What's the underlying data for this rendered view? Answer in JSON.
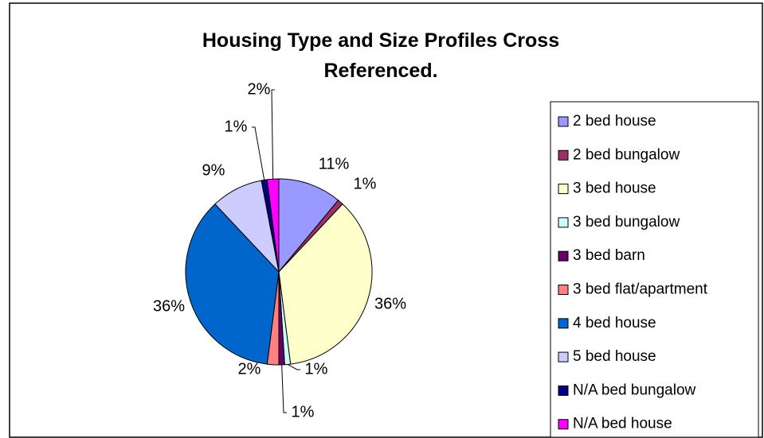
{
  "chart_data": {
    "type": "pie",
    "title": "Housing Type and Size Profiles Cross Referenced.",
    "categories": [
      "2 bed house",
      "2 bed bungalow",
      "3 bed house",
      "3 bed bungalow",
      "3 bed barn",
      "3 bed flat/apartment",
      "4 bed house",
      "5 bed house",
      "N/A bed bungalow",
      "N/A bed house"
    ],
    "values": [
      11,
      1,
      36,
      1,
      1,
      2,
      36,
      9,
      1,
      2
    ],
    "value_labels": [
      "11%",
      "1%",
      "36%",
      "1%",
      "1%",
      "2%",
      "36%",
      "9%",
      "1%",
      "2%"
    ],
    "colors": [
      "#9999ff",
      "#993366",
      "#ffffcc",
      "#ccffff",
      "#660066",
      "#ff8080",
      "#0066cc",
      "#ccccff",
      "#000080",
      "#ff00ff"
    ],
    "legend": "right"
  }
}
